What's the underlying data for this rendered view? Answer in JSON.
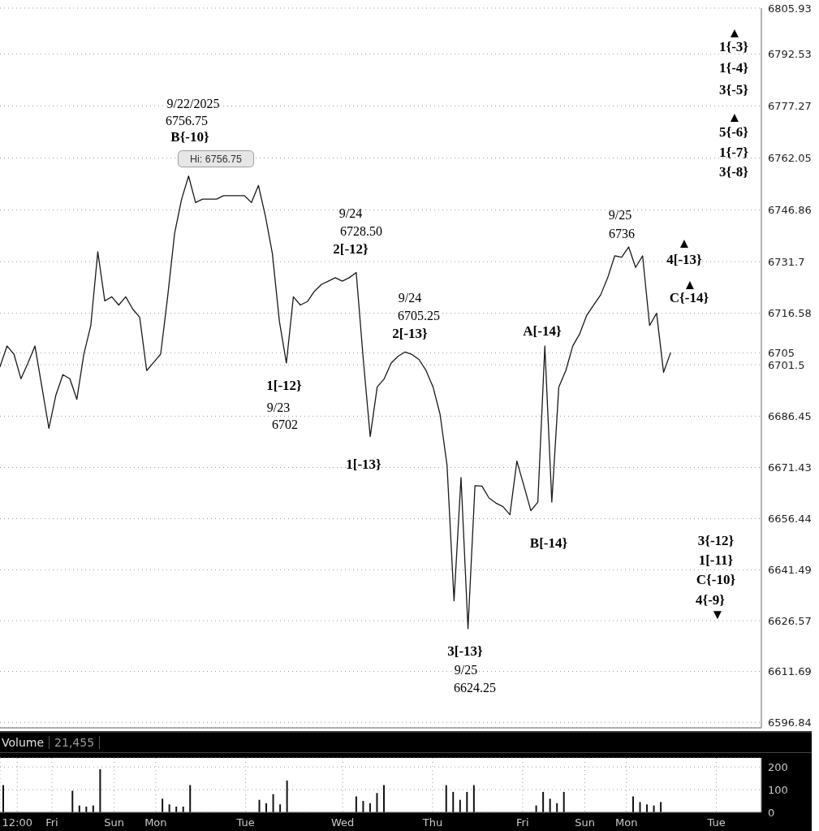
{
  "chart_data": [
    {
      "type": "line",
      "color": "#1a1a1a",
      "marker": "none",
      "line_style": "solid",
      "grid": "y",
      "categories": [
        null,
        null,
        null,
        null,
        null,
        null,
        null,
        null,
        null,
        null,
        null,
        null,
        null,
        null,
        null,
        null,
        null,
        null,
        null,
        null,
        null,
        null,
        null,
        null,
        null,
        null,
        null,
        null,
        null,
        null,
        null,
        null,
        null,
        null,
        null,
        null,
        null,
        null,
        null,
        null,
        null,
        null,
        null,
        null,
        null,
        null,
        null,
        null,
        null,
        null,
        null,
        null,
        null,
        null,
        null,
        null,
        null,
        null,
        null,
        null,
        null,
        null,
        null,
        null,
        null,
        null,
        null,
        null,
        null,
        null,
        null,
        null,
        null,
        null,
        null,
        null,
        null,
        null,
        null,
        null,
        null,
        null,
        null,
        null,
        null,
        null,
        null,
        null,
        null,
        null,
        null,
        null,
        null,
        null,
        null,
        null,
        null,
        null,
        null,
        null,
        null,
        null,
        null,
        null,
        null,
        null,
        null,
        null,
        null,
        null
      ],
      "values": [
        6700.9,
        6707.0,
        6704.6,
        6697.4,
        6702,
        6707.0,
        6695,
        6682.9,
        6692.6,
        6698.6,
        6697.4,
        6691.4,
        6704.6,
        6713.0,
        6734.6,
        6720.2,
        6721.4,
        6719.0,
        6721.4,
        6717.8,
        6715.4,
        6699.8,
        6702.2,
        6704.6,
        6721.4,
        6740,
        6750,
        6756.75,
        6749,
        6750,
        6750,
        6750,
        6751,
        6751,
        6751,
        6751,
        6749,
        6754,
        6745,
        6734,
        6714.2,
        6702,
        6721.4,
        6719,
        6720,
        6723,
        6725,
        6726,
        6727,
        6726,
        6727,
        6728.5,
        6703.3,
        6680.5,
        6695.0,
        6697.4,
        6702,
        6704,
        6705.25,
        6704.5,
        6703,
        6699.8,
        6695,
        6687,
        6672.1,
        6632.4,
        6668.5,
        6624.25,
        6666.1,
        6666,
        6662.5,
        6661,
        6660,
        6657.6,
        6673.3,
        6666.1,
        6658.8,
        6661.3,
        6707.0,
        6661.3,
        6695,
        6699.8,
        6707,
        6710.6,
        6716,
        6719,
        6722,
        6727,
        6733.4,
        6733,
        6736,
        6730,
        6733.4,
        6713,
        6716.6,
        6699.3,
        6705,
        null,
        null,
        null,
        null,
        null,
        null,
        null,
        null,
        null,
        null,
        null,
        null,
        null
      ],
      "ylim": [
        6595.2,
        6805.93
      ],
      "yticks": [
        6596.84,
        6611.69,
        6626.57,
        6641.49,
        6656.44,
        6671.43,
        6686.45,
        6701.5,
        6705,
        6716.58,
        6731.7,
        6746.86,
        6762.05,
        6777.27,
        6792.53,
        6805.93
      ],
      "annotations": [
        "Hi: 6756.75",
        "9/22/2025",
        "6756.75",
        "9/24",
        "6728.50",
        "9/23",
        "6702",
        "9/24",
        "6705.25",
        "9/25",
        "6624.25",
        "9/25",
        "6736",
        "B{-10}",
        "2[-12}",
        "1[-12}",
        "1[-13}",
        "2[-13}",
        "3[-13}",
        "A[-14}",
        "B[-14}",
        "4[-13}",
        "C{-14}",
        "1{-3}",
        "1{-4}",
        "3{-5}",
        "5{-6}",
        "1{-7}",
        "3{-8}",
        "3{-12}",
        "1[-11}",
        "C{-10}",
        "4{-9}",
        "▲",
        "▲",
        "▲",
        "▲",
        "▼"
      ]
    },
    {
      "type": "bar",
      "title": "Volume",
      "subtitle": "21,455",
      "color": "#111111",
      "grid": true,
      "categories": [
        null,
        null,
        "12:00",
        null,
        null,
        null,
        null,
        "Fri",
        null,
        null,
        null,
        null,
        null,
        null,
        null,
        null,
        "Sun",
        null,
        null,
        null,
        null,
        null,
        "Mon",
        null,
        null,
        null,
        null,
        null,
        null,
        null,
        null,
        null,
        null,
        null,
        null,
        "Tue",
        null,
        null,
        null,
        null,
        null,
        null,
        null,
        null,
        null,
        null,
        null,
        null,
        null,
        "Wed",
        null,
        null,
        null,
        null,
        null,
        null,
        null,
        null,
        null,
        null,
        null,
        null,
        "Thu",
        null,
        null,
        null,
        null,
        null,
        null,
        null,
        null,
        null,
        null,
        null,
        null,
        "Fri",
        null,
        null,
        null,
        null,
        null,
        null,
        null,
        null,
        "Sun",
        null,
        null,
        null,
        null,
        null,
        "Mon",
        null,
        null,
        null,
        null,
        null,
        null,
        null,
        null,
        null,
        null,
        null,
        null,
        "Tue",
        null,
        null,
        null,
        null,
        null,
        null
      ],
      "values": [
        120,
        null,
        null,
        null,
        null,
        null,
        null,
        null,
        null,
        null,
        95,
        30,
        25,
        30,
        190,
        null,
        null,
        null,
        null,
        null,
        null,
        null,
        null,
        60,
        35,
        25,
        25,
        120,
        null,
        null,
        null,
        null,
        null,
        null,
        null,
        null,
        null,
        55,
        40,
        80,
        35,
        140,
        null,
        null,
        null,
        null,
        null,
        null,
        null,
        null,
        null,
        70,
        50,
        40,
        85,
        120,
        null,
        null,
        null,
        null,
        null,
        null,
        null,
        null,
        120,
        90,
        55,
        90,
        120,
        null,
        null,
        null,
        null,
        null,
        null,
        null,
        null,
        30,
        90,
        60,
        40,
        90,
        null,
        null,
        null,
        null,
        null,
        null,
        null,
        null,
        null,
        70,
        45,
        35,
        30,
        45,
        null,
        null,
        null,
        null,
        null,
        null,
        null,
        null,
        null,
        null,
        null,
        null,
        null,
        null
      ],
      "ylim": [
        0,
        240
      ],
      "yticks": [
        0,
        100,
        200
      ]
    }
  ]
}
